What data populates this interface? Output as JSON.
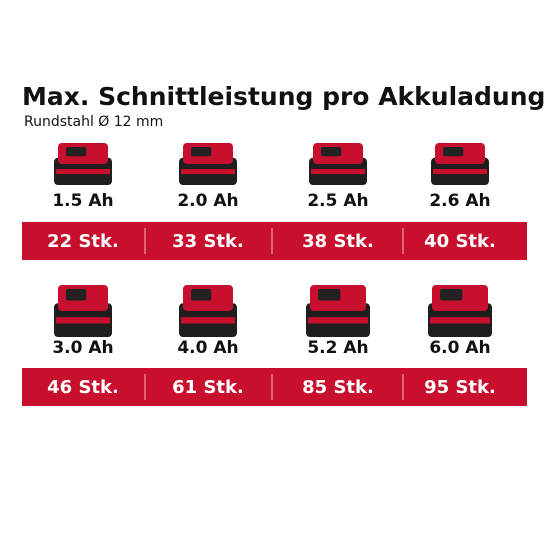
{
  "title": "Max. Schnittleistung pro Akkuladung",
  "subtitle": "Rundstahl Ø 12 mm",
  "rows": [
    {
      "items": [
        {
          "capacity": "1.5 Ah",
          "count": "22 Stk."
        },
        {
          "capacity": "2.0 Ah",
          "count": "33 Stk."
        },
        {
          "capacity": "2.5 Ah",
          "count": "38 Stk."
        },
        {
          "capacity": "2.6 Ah",
          "count": "40 Stk."
        }
      ]
    },
    {
      "items": [
        {
          "capacity": "3.0 Ah",
          "count": "46 Stk."
        },
        {
          "capacity": "4.0 Ah",
          "count": "61 Stk."
        },
        {
          "capacity": "5.2 Ah",
          "count": "85 Stk."
        },
        {
          "capacity": "6.0 Ah",
          "count": "95 Stk."
        }
      ]
    }
  ]
}
